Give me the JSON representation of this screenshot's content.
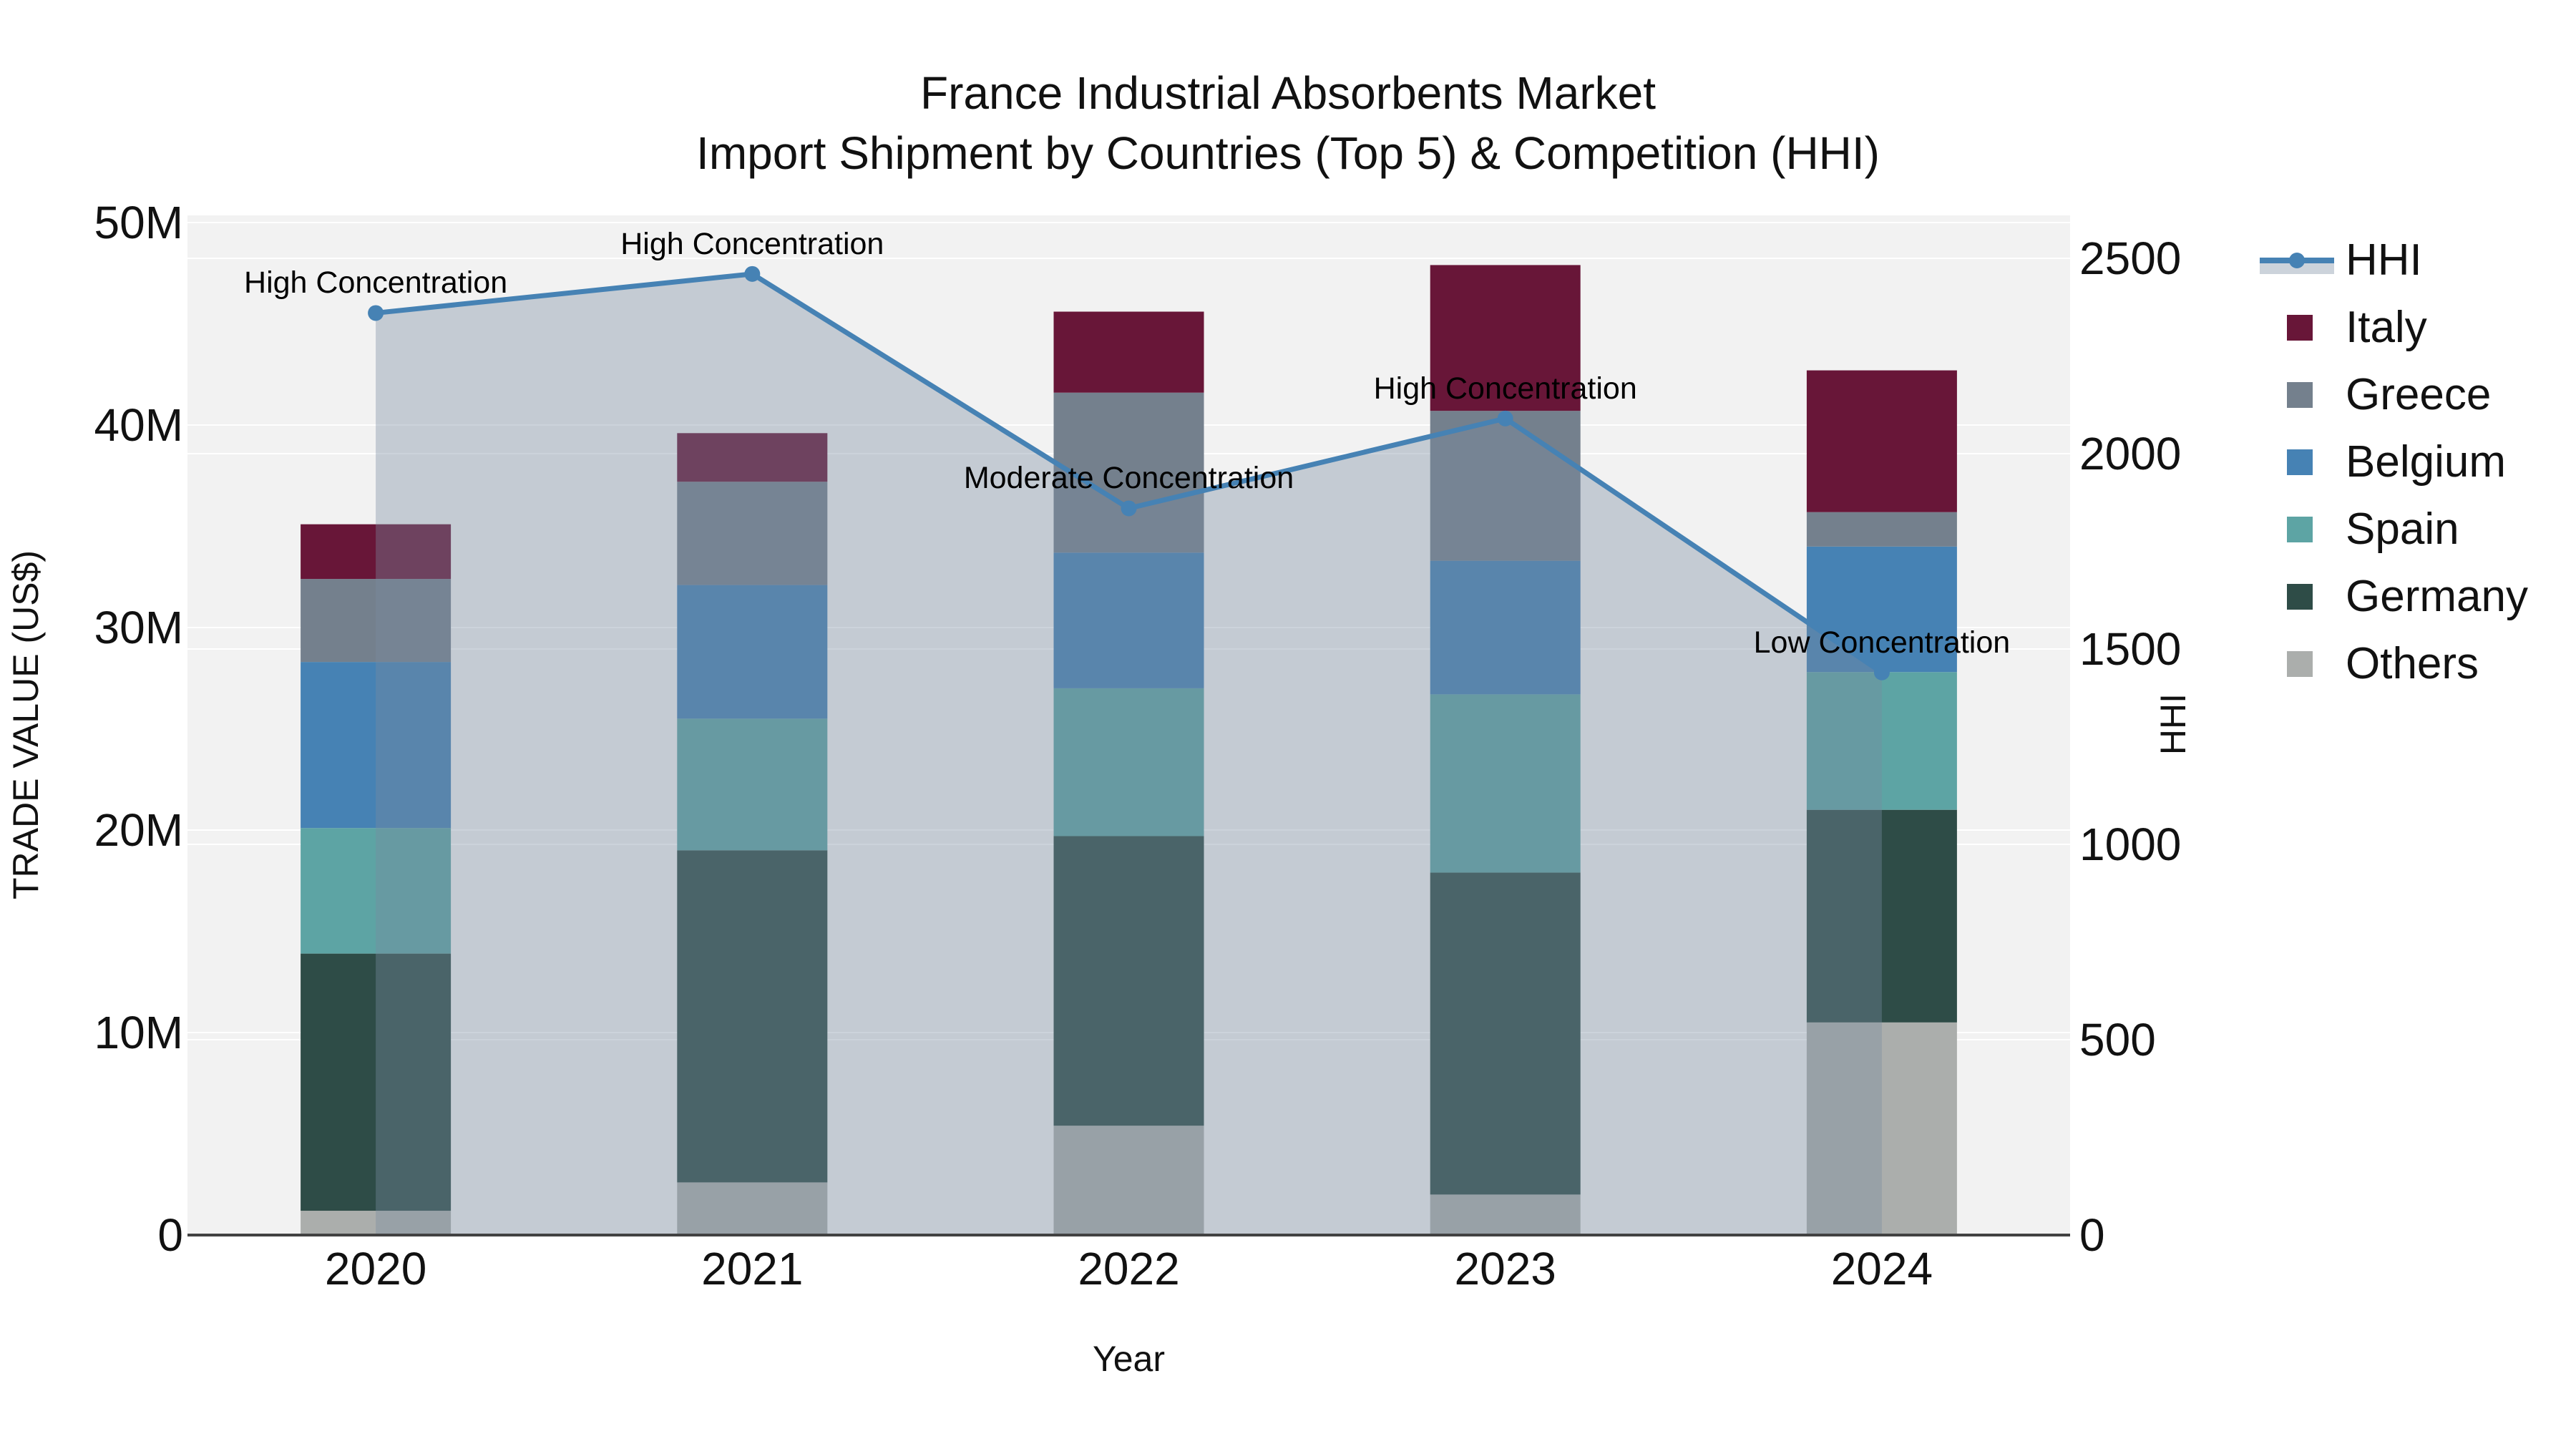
{
  "title": {
    "line1": "France Industrial Absorbents Market",
    "line2": "Import Shipment by Countries (Top 5) & Competition (HHI)"
  },
  "axes": {
    "x_title": "Year",
    "y_left_title": "TRADE VALUE (US$)",
    "y_right_title": "HHI",
    "y_left_ticks": [
      {
        "value_musd": 0,
        "label": "0"
      },
      {
        "value_musd": 10,
        "label": "10M"
      },
      {
        "value_musd": 20,
        "label": "20M"
      },
      {
        "value_musd": 30,
        "label": "30M"
      },
      {
        "value_musd": 40,
        "label": "40M"
      },
      {
        "value_musd": 50,
        "label": "50M"
      }
    ],
    "y_right_ticks": [
      {
        "value": 0,
        "label": "0"
      },
      {
        "value": 500,
        "label": "500"
      },
      {
        "value": 1000,
        "label": "1000"
      },
      {
        "value": 1500,
        "label": "1500"
      },
      {
        "value": 2000,
        "label": "2000"
      },
      {
        "value": 2500,
        "label": "2500"
      }
    ]
  },
  "chart_data": {
    "type": "bar+line",
    "categories": [
      "2020",
      "2021",
      "2022",
      "2023",
      "2024"
    ],
    "stack_order_bottom_to_top": [
      "Others",
      "Germany",
      "Spain",
      "Belgium",
      "Greece",
      "Italy"
    ],
    "bar_series": [
      {
        "name": "Others",
        "color": "#abaeac",
        "values_musd": [
          1.2,
          2.6,
          5.4,
          2.0,
          10.5
        ]
      },
      {
        "name": "Germany",
        "color": "#2e4c47",
        "values_musd": [
          12.7,
          16.4,
          14.3,
          15.9,
          10.5
        ]
      },
      {
        "name": "Spain",
        "color": "#5da4a4",
        "values_musd": [
          6.2,
          6.5,
          7.3,
          8.8,
          6.8
        ]
      },
      {
        "name": "Belgium",
        "color": "#4682b4",
        "values_musd": [
          8.2,
          6.6,
          6.7,
          6.6,
          6.2
        ]
      },
      {
        "name": "Greece",
        "color": "#74808d",
        "values_musd": [
          4.1,
          5.1,
          7.9,
          7.4,
          1.7
        ]
      },
      {
        "name": "Italy",
        "color": "#681638",
        "values_musd": [
          2.7,
          2.4,
          4.0,
          7.2,
          7.0
        ]
      }
    ],
    "line_series": {
      "name": "HHI",
      "color": "#4682b4",
      "fill_color": "rgba(120,140,160,0.38)",
      "values": [
        2360,
        2460,
        1860,
        2090,
        1440
      ]
    },
    "annotations": [
      {
        "category": "2020",
        "text": "High Concentration"
      },
      {
        "category": "2021",
        "text": "High Concentration"
      },
      {
        "category": "2022",
        "text": "Moderate Concentration"
      },
      {
        "category": "2023",
        "text": "High Concentration"
      },
      {
        "category": "2024",
        "text": "Low Concentration"
      }
    ],
    "ylim_left_musd": [
      0,
      50.4
    ],
    "ylim_right": [
      0,
      2610
    ],
    "grid": true,
    "legend_position": "right"
  },
  "legend": {
    "entries": [
      {
        "label": "HHI",
        "type": "line",
        "color": "#4682b4",
        "fill_sample": "#ccd3db"
      },
      {
        "label": "Italy",
        "type": "swatch",
        "color": "#681638"
      },
      {
        "label": "Greece",
        "type": "swatch",
        "color": "#74808d"
      },
      {
        "label": "Belgium",
        "type": "swatch",
        "color": "#4682b4"
      },
      {
        "label": "Spain",
        "type": "swatch",
        "color": "#5da4a4"
      },
      {
        "label": "Germany",
        "type": "swatch",
        "color": "#2e4c47"
      },
      {
        "label": "Others",
        "type": "swatch",
        "color": "#abaeac"
      }
    ]
  },
  "colors": {
    "page_bg": "#ffffff",
    "plot_bg": "#f2f2f2",
    "grid": "#ffffff",
    "axis_line": "#424242",
    "text": "#111111",
    "annotation_text": "#000000"
  }
}
